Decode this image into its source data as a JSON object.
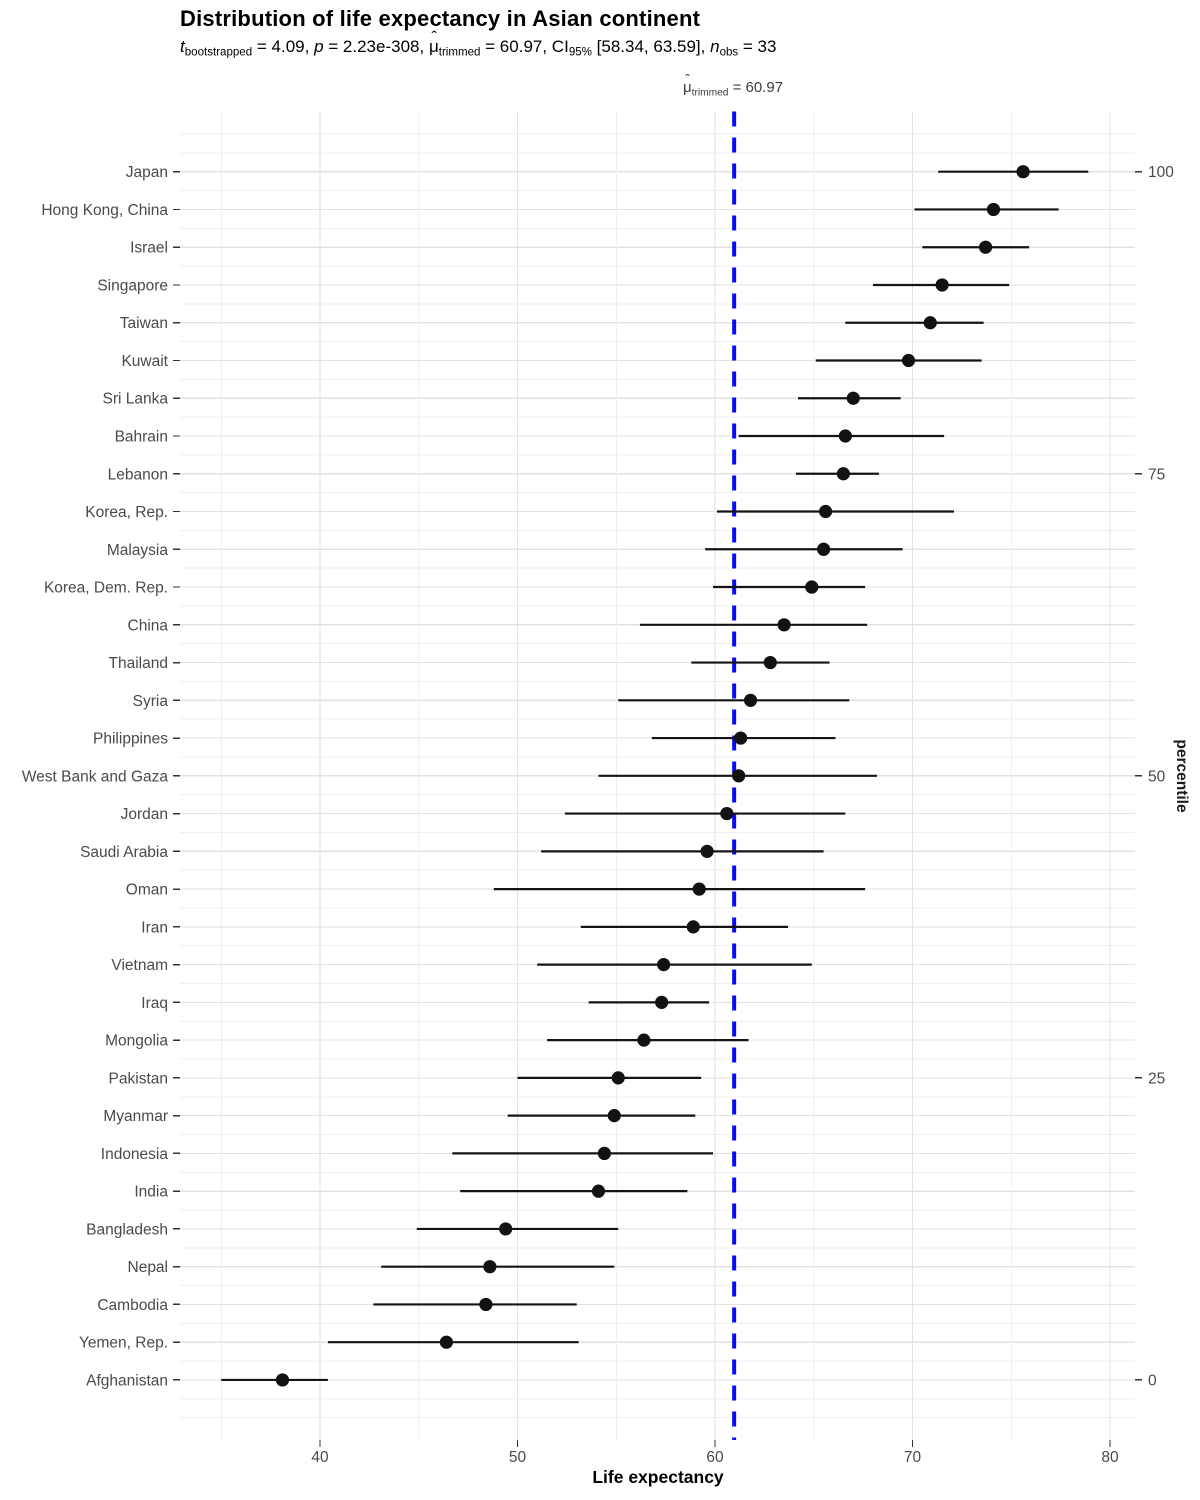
{
  "header": {
    "title": "Distribution of life expectancy in Asian continent",
    "subtitle_segments": [
      {
        "text": "t",
        "style": "italic"
      },
      {
        "text": "bootstrapped",
        "style": "sub"
      },
      {
        "text": " = 4.09, ",
        "style": ""
      },
      {
        "text": "p",
        "style": "italic"
      },
      {
        "text": " = 2.23e-308, ",
        "style": ""
      },
      {
        "text": "μ",
        "style": "hat"
      },
      {
        "text": "trimmed",
        "style": "sub"
      },
      {
        "text": " = 60.97, CI",
        "style": ""
      },
      {
        "text": "95%",
        "style": "sub"
      },
      {
        "text": " [58.34, 63.59], ",
        "style": ""
      },
      {
        "text": "n",
        "style": "italic"
      },
      {
        "text": "obs",
        "style": "sub"
      },
      {
        "text": " = 33",
        "style": ""
      }
    ],
    "annotation_segments": [
      {
        "text": "μ",
        "style": "hat"
      },
      {
        "text": "trimmed",
        "style": "sub"
      },
      {
        "text": " = 60.97",
        "style": ""
      }
    ]
  },
  "stats": {
    "t_bootstrapped": "4.09",
    "p_value": "2.23e-308",
    "mu_trimmed": "60.97",
    "ci_level": "95%",
    "ci_low": "58.34",
    "ci_high": "63.59",
    "n_obs": "33"
  },
  "chart_data": {
    "type": "scatter",
    "subtype": "horizontal-dot-plot-with-ci-errorbars",
    "title": "Distribution of life expectancy in Asian continent",
    "xlabel": "Life expectancy",
    "ylabel_right": "percentile",
    "x_major_ticks": [
      40,
      50,
      60,
      70,
      80
    ],
    "x_minor_gridlines": [
      35,
      45,
      55,
      65,
      75
    ],
    "xlim": [
      32.9,
      81.3
    ],
    "grid": true,
    "reference_line": {
      "value": 60.97,
      "style": "dashed",
      "label": "mu-hat trimmed = 60.97"
    },
    "right_axis_ticks": [
      {
        "label": "100",
        "country": "Japan"
      },
      {
        "label": "75",
        "country": "Lebanon"
      },
      {
        "label": "50",
        "country": "West Bank and Gaza"
      },
      {
        "label": "25",
        "country": "Pakistan"
      },
      {
        "label": "0",
        "country": "Afghanistan"
      }
    ],
    "points": [
      {
        "country": "Japan",
        "mean": 75.6,
        "ci_low": 71.3,
        "ci_high": 78.9
      },
      {
        "country": "Hong Kong, China",
        "mean": 74.1,
        "ci_low": 70.1,
        "ci_high": 77.4
      },
      {
        "country": "Israel",
        "mean": 73.7,
        "ci_low": 70.5,
        "ci_high": 75.9
      },
      {
        "country": "Singapore",
        "mean": 71.5,
        "ci_low": 68.0,
        "ci_high": 74.9
      },
      {
        "country": "Taiwan",
        "mean": 70.9,
        "ci_low": 66.6,
        "ci_high": 73.6
      },
      {
        "country": "Kuwait",
        "mean": 69.8,
        "ci_low": 65.1,
        "ci_high": 73.5
      },
      {
        "country": "Sri Lanka",
        "mean": 67.0,
        "ci_low": 64.2,
        "ci_high": 69.4
      },
      {
        "country": "Bahrain",
        "mean": 66.6,
        "ci_low": 61.2,
        "ci_high": 71.6
      },
      {
        "country": "Lebanon",
        "mean": 66.5,
        "ci_low": 64.1,
        "ci_high": 68.3
      },
      {
        "country": "Korea, Rep.",
        "mean": 65.6,
        "ci_low": 60.1,
        "ci_high": 72.1
      },
      {
        "country": "Malaysia",
        "mean": 65.5,
        "ci_low": 59.5,
        "ci_high": 69.5
      },
      {
        "country": "Korea, Dem. Rep.",
        "mean": 64.9,
        "ci_low": 59.9,
        "ci_high": 67.6
      },
      {
        "country": "China",
        "mean": 63.5,
        "ci_low": 56.2,
        "ci_high": 67.7
      },
      {
        "country": "Thailand",
        "mean": 62.8,
        "ci_low": 58.8,
        "ci_high": 65.8
      },
      {
        "country": "Syria",
        "mean": 61.8,
        "ci_low": 55.1,
        "ci_high": 66.8
      },
      {
        "country": "Philippines",
        "mean": 61.3,
        "ci_low": 56.8,
        "ci_high": 66.1
      },
      {
        "country": "West Bank and Gaza",
        "mean": 61.2,
        "ci_low": 54.1,
        "ci_high": 68.2
      },
      {
        "country": "Jordan",
        "mean": 60.6,
        "ci_low": 52.4,
        "ci_high": 66.6
      },
      {
        "country": "Saudi Arabia",
        "mean": 59.6,
        "ci_low": 51.2,
        "ci_high": 65.5
      },
      {
        "country": "Oman",
        "mean": 59.2,
        "ci_low": 48.8,
        "ci_high": 67.6
      },
      {
        "country": "Iran",
        "mean": 58.9,
        "ci_low": 53.2,
        "ci_high": 63.7
      },
      {
        "country": "Vietnam",
        "mean": 57.4,
        "ci_low": 51.0,
        "ci_high": 64.9
      },
      {
        "country": "Iraq",
        "mean": 57.3,
        "ci_low": 53.6,
        "ci_high": 59.7
      },
      {
        "country": "Mongolia",
        "mean": 56.4,
        "ci_low": 51.5,
        "ci_high": 61.7
      },
      {
        "country": "Pakistan",
        "mean": 55.1,
        "ci_low": 50.0,
        "ci_high": 59.3
      },
      {
        "country": "Myanmar",
        "mean": 54.9,
        "ci_low": 49.5,
        "ci_high": 59.0
      },
      {
        "country": "Indonesia",
        "mean": 54.4,
        "ci_low": 46.7,
        "ci_high": 59.9
      },
      {
        "country": "India",
        "mean": 54.1,
        "ci_low": 47.1,
        "ci_high": 58.6
      },
      {
        "country": "Bangladesh",
        "mean": 49.4,
        "ci_low": 44.9,
        "ci_high": 55.1
      },
      {
        "country": "Nepal",
        "mean": 48.6,
        "ci_low": 43.1,
        "ci_high": 54.9
      },
      {
        "country": "Cambodia",
        "mean": 48.4,
        "ci_low": 42.7,
        "ci_high": 53.0
      },
      {
        "country": "Yemen, Rep.",
        "mean": 46.4,
        "ci_low": 40.4,
        "ci_high": 53.1
      },
      {
        "country": "Afghanistan",
        "mean": 38.1,
        "ci_low": 35.0,
        "ci_high": 40.4
      }
    ]
  },
  "colors": {
    "background": "#ffffff",
    "point": "#121212",
    "errorbar": "#141414",
    "reference_line": "#0a0af2",
    "grid_major": "#e2e2e2",
    "grid_minor": "#efefef",
    "tick": "#333333",
    "axis_text": "#4a4a4a",
    "annotation_text": "#3d3d3d"
  }
}
